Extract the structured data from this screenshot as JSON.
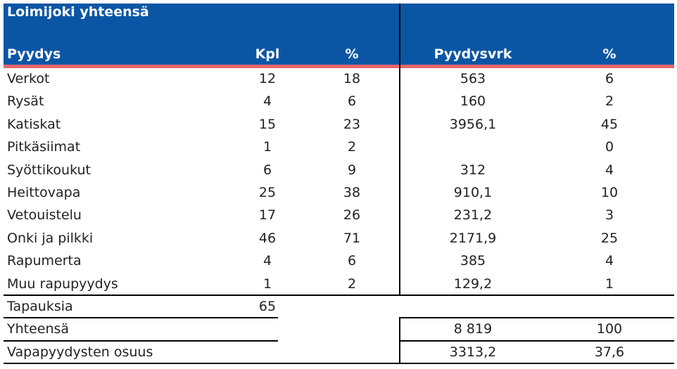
{
  "table": {
    "title": "Loimijoki yhteensä",
    "columns": [
      "Pyydys",
      "Kpl",
      "%",
      "Pyydysvrk",
      "%"
    ],
    "rows": [
      [
        "Verkot",
        "12",
        "18",
        "563",
        "6"
      ],
      [
        "Rysät",
        "4",
        "6",
        "160",
        "2"
      ],
      [
        "Katiskat",
        "15",
        "23",
        "3956,1",
        "45"
      ],
      [
        "Pitkäsiimat",
        "1",
        "2",
        null,
        "0"
      ],
      [
        "Syöttikoukut",
        "6",
        "9",
        "312",
        "4"
      ],
      [
        "Heittovapa",
        "25",
        "38",
        "910,1",
        "10"
      ],
      [
        "Vetouistelu",
        "17",
        "26",
        "231,2",
        "3"
      ],
      [
        "Onki ja pilkki",
        "46",
        "71",
        "2171,9",
        "25"
      ],
      [
        "Rapumerta",
        "4",
        "6",
        "385",
        "4"
      ],
      [
        "Muu rapupyydys",
        "1",
        "2",
        "129,2",
        "1"
      ],
      [
        "Tapauksia",
        "65",
        null,
        null,
        null
      ],
      [
        "Yhteensä",
        null,
        null,
        "8 819",
        "100"
      ],
      [
        "Vapapyydysten osuus",
        null,
        null,
        "3313,2",
        "37,6"
      ]
    ]
  }
}
